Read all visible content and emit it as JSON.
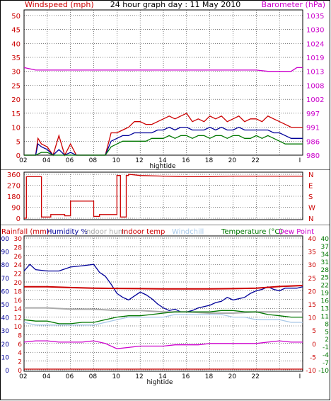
{
  "colors": {
    "windspeed": "#cc0000",
    "wind_avg": "#000099",
    "gust": "#007700",
    "barometer": "#cc00cc",
    "direction": "#cc0000",
    "rainfall": "#cc0000",
    "humidity": "#000099",
    "indoor_hum": "#aaaaaa",
    "indoor_temp": "#cc0000",
    "windchill": "#a8c8e8",
    "temperature": "#007700",
    "dew_point": "#cc00cc",
    "grid": "#000000",
    "frame": "#000000"
  },
  "chart_data": [
    {
      "type": "line",
      "title": "24 hour graph day : 11 May 2010",
      "ylabel_left": "Windspeed (mph)",
      "ylabel_right": "Barometer (hPa)",
      "y_ticks_left": [
        "0",
        "5",
        "10",
        "15",
        "20",
        "25",
        "30",
        "35",
        "40",
        "45",
        "50"
      ],
      "ylim_left": [
        0,
        52
      ],
      "y_ticks_right": [
        "980",
        "986",
        "991",
        "997",
        "1002",
        "1008",
        "1013",
        "1019",
        "1024",
        "1030",
        "1035"
      ],
      "x_ticks": [
        "02",
        "04",
        "06",
        "08",
        "10",
        "12",
        "14",
        "16",
        "18",
        "20",
        "22",
        "I"
      ],
      "x_annotation": "hightide",
      "xlim": [
        0,
        24
      ],
      "grid": true,
      "series": [
        {
          "name": "Windspeed (mph)",
          "x": [
            0,
            1,
            1.2,
            1.5,
            2,
            2.5,
            3,
            3.5,
            4,
            4.5,
            5,
            5.5,
            6,
            6.5,
            7,
            7.5,
            8,
            8.5,
            9,
            9.5,
            10,
            10.5,
            11,
            11.5,
            12,
            12.5,
            13,
            13.5,
            14,
            14.5,
            15,
            15.5,
            16,
            16.5,
            17,
            17.5,
            18,
            18.5,
            19,
            19.5,
            20,
            20.5,
            21,
            21.5,
            22,
            22.5,
            23,
            23.5,
            24
          ],
          "values": [
            0,
            0,
            6,
            4,
            3,
            0,
            7,
            0,
            4,
            0,
            0,
            0,
            0,
            0,
            0,
            8,
            8,
            9,
            10,
            12,
            12,
            11,
            11,
            12,
            13,
            14,
            13,
            14,
            15,
            12,
            13,
            12,
            14,
            13,
            14,
            12,
            13,
            14,
            12,
            13,
            13,
            12,
            14,
            13,
            12,
            11,
            10,
            10,
            10
          ]
        },
        {
          "name": "Wind average",
          "x": [
            0,
            1,
            1.2,
            1.5,
            2,
            2.5,
            3,
            3.5,
            4,
            4.5,
            5,
            5.5,
            6,
            6.5,
            7,
            7.5,
            8,
            8.5,
            9,
            9.5,
            10,
            10.5,
            11,
            11.5,
            12,
            12.5,
            13,
            13.5,
            14,
            14.5,
            15,
            15.5,
            16,
            16.5,
            17,
            17.5,
            18,
            18.5,
            19,
            19.5,
            20,
            20.5,
            21,
            21.5,
            22,
            22.5,
            23,
            23.5,
            24
          ],
          "values": [
            0,
            0,
            4,
            3,
            2,
            0,
            2,
            0,
            1,
            0,
            0,
            0,
            0,
            0,
            0,
            5,
            6,
            7,
            7,
            8,
            8,
            8,
            8,
            9,
            9,
            10,
            9,
            10,
            10,
            9,
            9,
            9,
            10,
            9,
            10,
            9,
            9,
            10,
            9,
            9,
            9,
            9,
            9,
            8,
            8,
            7,
            6,
            6,
            6
          ]
        },
        {
          "name": "Gust",
          "x": [
            0,
            1,
            1.5,
            2,
            2.5,
            3,
            3.5,
            4,
            4.5,
            5,
            5.5,
            6,
            6.5,
            7,
            7.5,
            8,
            8.5,
            9,
            9.5,
            10,
            10.5,
            11,
            11.5,
            12,
            12.5,
            13,
            13.5,
            14,
            14.5,
            15,
            15.5,
            16,
            16.5,
            17,
            17.5,
            18,
            18.5,
            19,
            19.5,
            20,
            20.5,
            21,
            21.5,
            22,
            22.5,
            23,
            23.5,
            24
          ],
          "values": [
            0,
            0,
            1,
            1,
            0,
            0,
            0,
            0,
            0,
            0,
            0,
            0,
            0,
            0,
            3,
            4,
            5,
            5,
            5,
            5,
            5,
            6,
            6,
            6,
            7,
            6,
            7,
            7,
            6,
            7,
            7,
            6,
            7,
            7,
            6,
            7,
            7,
            6,
            6,
            7,
            6,
            7,
            6,
            5,
            4,
            4,
            4,
            4
          ]
        },
        {
          "name": "Barometer (hPa)",
          "axis": "right",
          "x": [
            0,
            1,
            2,
            3,
            4,
            5,
            6,
            7,
            8,
            9,
            10,
            11,
            12,
            13,
            14,
            15,
            16,
            17,
            18,
            19,
            20,
            21,
            22,
            23,
            23.5,
            24
          ],
          "values": [
            1014.5,
            1013.5,
            1013.5,
            1013.5,
            1013.5,
            1013.5,
            1013.5,
            1013.5,
            1013.5,
            1013.5,
            1013.5,
            1013.5,
            1013.5,
            1013.5,
            1013.5,
            1013.5,
            1013.5,
            1013.5,
            1013.5,
            1013.5,
            1013.5,
            1013,
            1013,
            1013,
            1014.5,
            1014.5
          ]
        }
      ]
    },
    {
      "type": "line",
      "y_ticks_left": [
        "0",
        "90",
        "180",
        "270",
        "360"
      ],
      "ylim_left": [
        0,
        360
      ],
      "y_ticks_right": [
        "N",
        "E",
        "S",
        "W",
        "N"
      ],
      "series": [
        {
          "name": "Wind direction",
          "x": [
            0,
            0.2,
            0.2,
            1.5,
            1.5,
            2.3,
            2.3,
            3.5,
            3.5,
            4,
            4,
            6,
            6,
            6.5,
            6.5,
            8,
            8,
            8.3,
            8.3,
            8.8,
            8.8,
            9,
            9,
            10,
            12,
            14,
            16,
            18,
            20,
            22,
            24
          ],
          "values": [
            0,
            0,
            340,
            340,
            10,
            10,
            30,
            30,
            20,
            20,
            140,
            140,
            15,
            15,
            30,
            30,
            350,
            350,
            10,
            10,
            350,
            350,
            360,
            350,
            345,
            340,
            340,
            345,
            345,
            345,
            345
          ]
        }
      ]
    },
    {
      "type": "line",
      "labels": [
        "Rainfall (mm)",
        "Humidity %",
        "Indoor hum",
        "Indoor temp",
        "Windchill",
        "Temperature (°C)",
        "Dew Point"
      ],
      "y_ticks_left_rain": [
        "0",
        "2",
        "4",
        "6",
        "8",
        "10",
        "12",
        "14",
        "16",
        "18",
        "20",
        "22",
        "24",
        "26",
        "28",
        "30"
      ],
      "y_ticks_left_hum": [
        "0",
        "10",
        "20",
        "30",
        "40",
        "50",
        "60",
        "70",
        "80",
        "90",
        "100"
      ],
      "y_ticks_right_a": [
        "-10",
        "-5",
        "0",
        "5",
        "10",
        "15",
        "20",
        "25",
        "30",
        "35",
        "40"
      ],
      "y_ticks_right_b": [
        "-10",
        "-7",
        "-4",
        "-1",
        "2",
        "5",
        "8",
        "11",
        "13",
        "16",
        "19",
        "22",
        "25",
        "28",
        "31",
        "34",
        "37",
        "40"
      ],
      "x_ticks": [
        "02",
        "04",
        "06",
        "08",
        "10",
        "12",
        "14",
        "16",
        "18",
        "20",
        "22",
        "I"
      ],
      "x_annotation": "hightide",
      "temp_ylim": [
        -10,
        40
      ],
      "series": [
        {
          "name": "Humidity %",
          "x": [
            0,
            0.5,
            1,
            2,
            3,
            4,
            5,
            6,
            6.5,
            7,
            7.5,
            8,
            8.5,
            9,
            9.5,
            10,
            10.5,
            11,
            11.5,
            12,
            12.5,
            13,
            13.5,
            14,
            14.5,
            15,
            15.5,
            16,
            16.5,
            17,
            17.5,
            18,
            18.5,
            19,
            19.5,
            20,
            20.5,
            21,
            21.5,
            22,
            22.5,
            23,
            23.5,
            24
          ],
          "values": [
            75,
            80,
            76,
            75,
            75,
            78,
            79,
            80,
            74,
            71,
            65,
            58,
            55,
            53,
            56,
            59,
            57,
            54,
            50,
            47,
            45,
            46,
            44,
            44,
            45,
            47,
            48,
            49,
            51,
            52,
            55,
            53,
            54,
            55,
            58,
            60,
            61,
            63,
            61,
            60,
            62,
            62,
            62,
            63
          ]
        },
        {
          "name": "Indoor hum",
          "x": [
            0,
            2,
            4,
            6,
            8,
            10,
            12,
            14,
            16,
            18,
            20,
            22,
            24
          ],
          "values": [
            47,
            47,
            46,
            46,
            45,
            45,
            44,
            44,
            43,
            43,
            44,
            44,
            44
          ]
        },
        {
          "name": "Indoor temp",
          "axis": "right",
          "x": [
            0,
            2,
            4,
            6,
            8,
            10,
            12,
            14,
            16,
            18,
            20,
            22,
            24
          ],
          "values": [
            21.5,
            21.5,
            21.2,
            21.0,
            20.9,
            20.8,
            20.7,
            20.7,
            20.7,
            20.8,
            21.0,
            21.6,
            22.0
          ]
        },
        {
          "name": "Windchill",
          "axis": "right",
          "x": [
            0,
            1,
            2,
            3,
            4,
            5,
            6,
            7,
            8,
            9,
            10,
            11,
            12,
            13,
            14,
            15,
            16,
            17,
            18,
            19,
            20,
            21,
            22,
            23,
            24
          ],
          "values": [
            8,
            7,
            7,
            7,
            7,
            7,
            7,
            8,
            9,
            10,
            10,
            10,
            10,
            11,
            11,
            11,
            11,
            11,
            10,
            10,
            9,
            9,
            9,
            8,
            8
          ]
        },
        {
          "name": "Temperature (°C)",
          "axis": "right",
          "x": [
            0,
            1,
            2,
            3,
            4,
            5,
            6,
            7,
            8,
            9,
            10,
            11,
            12,
            13,
            14,
            15,
            16,
            17,
            18,
            19,
            20,
            21,
            22,
            23,
            24
          ],
          "values": [
            9,
            8.5,
            8.5,
            7.5,
            7.5,
            8,
            8,
            9,
            10,
            10.5,
            10.5,
            11,
            11.5,
            12,
            12,
            12,
            12,
            12.5,
            12.5,
            12,
            12,
            11,
            10.5,
            10,
            10
          ]
        },
        {
          "name": "Dew Point",
          "axis": "right",
          "x": [
            0,
            1,
            2,
            3,
            4,
            5,
            6,
            7,
            8,
            9,
            10,
            11,
            12,
            13,
            14,
            15,
            16,
            17,
            18,
            19,
            20,
            21,
            22,
            23,
            24
          ],
          "values": [
            0.5,
            1,
            1,
            0.5,
            0.5,
            0.5,
            1,
            0,
            -2,
            -1.5,
            -1,
            -1,
            -1,
            -0.5,
            -0.5,
            -0.5,
            0,
            0,
            0,
            0,
            0,
            0.5,
            1,
            0.5,
            0.5
          ]
        },
        {
          "name": "Rainfall (mm)",
          "x": [
            0,
            24
          ],
          "values": [
            0,
            0
          ]
        }
      ]
    }
  ]
}
